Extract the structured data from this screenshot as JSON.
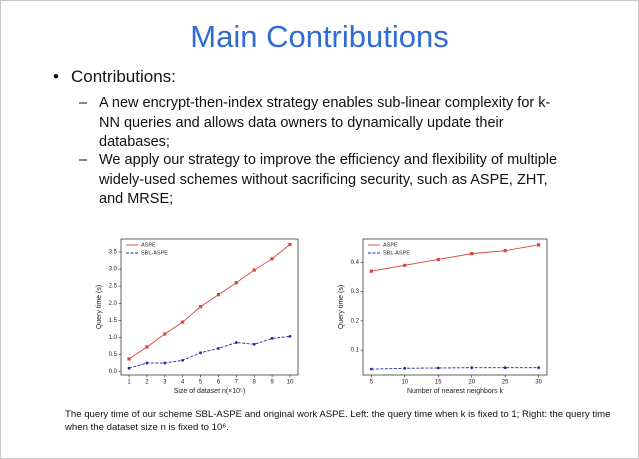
{
  "slide": {
    "title": "Main Contributions",
    "bullet": "Contributions:",
    "sub_bullets": [
      "A  new encrypt-then-index strategy  enables sub-linear complexity for k-NN queries and allows data owners to dynamically update their databases;",
      "We apply our strategy to improve the efficiency and flexibility of multiple widely-used schemes without sacrificing security, such as ASPE, ZHT, and MRSE;"
    ],
    "caption": "The query time of our scheme SBL-ASPE and original work ASPE. Left: the query time when k is fixed to 1; Right: the query time when the dataset size n is fixed to 10⁶."
  },
  "chart_data": [
    {
      "type": "line",
      "x_label": "Size of dataset n(×10⁵)",
      "y_label": "Query time (s)",
      "x": [
        1,
        2,
        3,
        4,
        5,
        6,
        7,
        8,
        9,
        10
      ],
      "xlim": [
        0.55,
        10.45
      ],
      "xticks": [
        1,
        2,
        3,
        4,
        5,
        6,
        7,
        8,
        9,
        10
      ],
      "ylim": [
        -0.1,
        3.88
      ],
      "yticks": [
        {
          "value": 0,
          "label": "0.0"
        },
        0.5,
        {
          "value": 1,
          "label": "1.0"
        },
        1.5,
        {
          "value": 2,
          "label": "2.0"
        },
        2.5,
        {
          "value": 3,
          "label": "3.0"
        },
        3.5
      ],
      "legend": "upper left",
      "series": [
        {
          "name": "ASPE",
          "color": "#d9453c",
          "linestyle": "solid",
          "marker": "square",
          "values": [
            0.37,
            0.72,
            1.1,
            1.45,
            1.9,
            2.25,
            2.6,
            2.97,
            3.3,
            3.72
          ]
        },
        {
          "name": "SBL-ASPE",
          "color": "#1f2aa8",
          "linestyle": "dashed",
          "marker": "circle",
          "values": [
            0.1,
            0.25,
            0.25,
            0.33,
            0.55,
            0.68,
            0.85,
            0.8,
            0.97,
            1.03
          ]
        }
      ]
    },
    {
      "type": "line",
      "x_label": "Number of nearest neighbors k",
      "y_label": "Query time (s)",
      "x": [
        5,
        10,
        15,
        20,
        25,
        30
      ],
      "xlim": [
        3.75,
        31.25
      ],
      "xticks": [
        5,
        10,
        15,
        20,
        25,
        30
      ],
      "ylim": [
        0.015,
        0.48
      ],
      "yticks": [
        0.1,
        0.2,
        0.3,
        0.4
      ],
      "legend": "upper left",
      "series": [
        {
          "name": "ASPE",
          "color": "#d9453c",
          "linestyle": "solid",
          "marker": "square",
          "values": [
            0.37,
            0.39,
            0.41,
            0.43,
            0.44,
            0.46
          ]
        },
        {
          "name": "SBL-ASPE",
          "color": "#1f2aa8",
          "linestyle": "dashed",
          "marker": "circle",
          "values": [
            0.035,
            0.038,
            0.039,
            0.04,
            0.04,
            0.04
          ]
        }
      ]
    }
  ]
}
